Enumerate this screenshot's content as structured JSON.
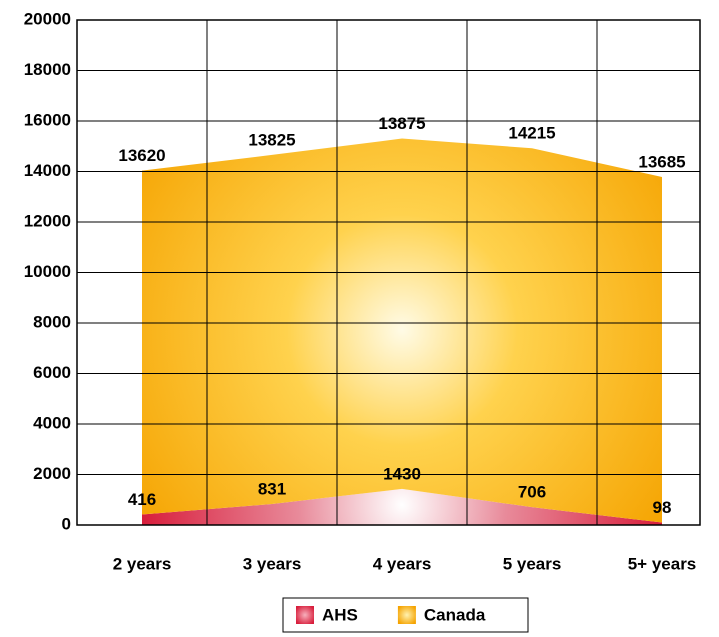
{
  "chart_data": {
    "type": "area",
    "categories": [
      "2 years",
      "3 years",
      "4 years",
      "5 years",
      "5+ years"
    ],
    "series": [
      {
        "name": "AHS",
        "color": "#d81e3c",
        "values": [
          416,
          831,
          1430,
          706,
          98
        ]
      },
      {
        "name": "Canada",
        "color": "#f5a300",
        "values": [
          13620,
          13825,
          13875,
          14215,
          13685
        ]
      }
    ],
    "stacked": true,
    "ylim": [
      0,
      20000
    ],
    "yticks": [
      0,
      2000,
      4000,
      6000,
      8000,
      10000,
      12000,
      14000,
      16000,
      18000,
      20000
    ],
    "grid": true,
    "legend": "bottom"
  }
}
